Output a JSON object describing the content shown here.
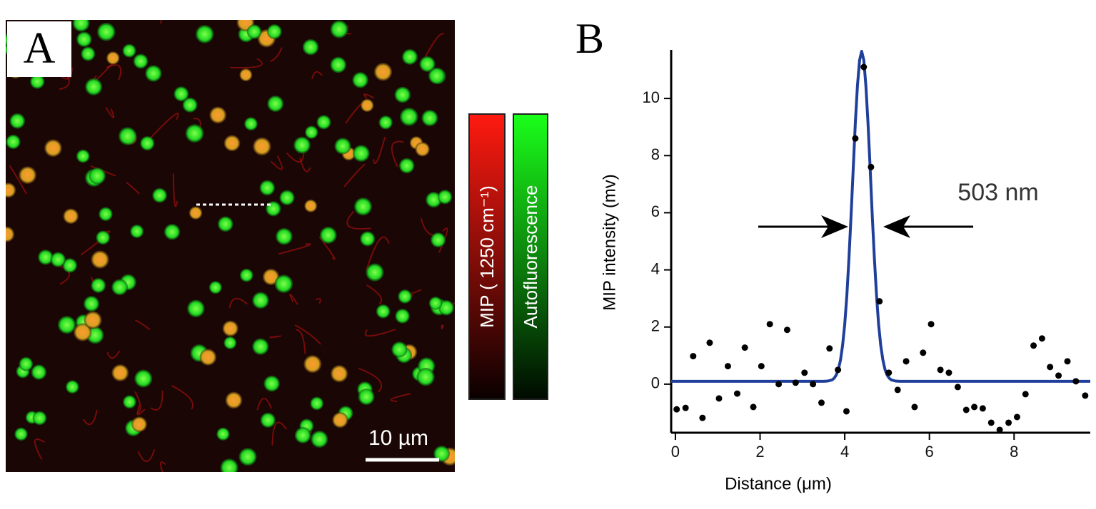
{
  "panel_a": {
    "label": "A",
    "scale_bar": "10 µm",
    "colorbar_red": "MIP ( 1250 cm⁻¹)",
    "colorbar_green": "Autofluorescence"
  },
  "panel_b": {
    "label": "B"
  },
  "chart_data": {
    "type": "scatter",
    "xlabel": "Distance (μm)",
    "ylabel": "MIP intensity (mv)",
    "annotation": "503 nm",
    "xlim": [
      -0.1,
      9.8
    ],
    "ylim": [
      -1.7,
      11.7
    ],
    "xticks": [
      0,
      2,
      4,
      6,
      8
    ],
    "yticks": [
      0,
      2,
      4,
      6,
      8,
      10
    ],
    "points": {
      "color": "#000000",
      "x": [
        0.03,
        0.24,
        0.42,
        0.64,
        0.81,
        1.03,
        1.24,
        1.46,
        1.64,
        1.84,
        2.03,
        2.23,
        2.44,
        2.64,
        2.84,
        3.05,
        3.25,
        3.45,
        3.64,
        3.84,
        4.04,
        4.25,
        4.45,
        4.62,
        4.82,
        5.04,
        5.25,
        5.45,
        5.65,
        5.85,
        6.04,
        6.26,
        6.46,
        6.67,
        6.87,
        7.06,
        7.26,
        7.46,
        7.66,
        7.87,
        8.07,
        8.27,
        8.46,
        8.66,
        8.85,
        9.05,
        9.26,
        9.46,
        9.68
      ],
      "values": [
        -0.88,
        -0.83,
        0.98,
        -1.18,
        1.45,
        -0.5,
        0.63,
        -0.33,
        1.28,
        -0.8,
        0.63,
        2.1,
        0,
        1.9,
        0.05,
        0.4,
        0,
        -0.65,
        1.25,
        0.5,
        -0.95,
        8.6,
        11.1,
        7.6,
        2.9,
        0.4,
        -0.2,
        0.8,
        -0.8,
        1.1,
        2.1,
        0.5,
        0.4,
        -0.1,
        -0.9,
        -0.8,
        -0.85,
        -1.35,
        -1.6,
        -1.35,
        -1.15,
        -0.35,
        1.35,
        1.6,
        0.6,
        0.3,
        0.8,
        0.1,
        -0.4
      ]
    },
    "fit": {
      "color": "#1f3f9a",
      "x": [
        -0.1,
        3.5,
        3.6,
        3.7,
        3.75,
        3.8,
        3.85,
        3.9,
        3.95,
        4.0,
        4.05,
        4.1,
        4.15,
        4.2,
        4.25,
        4.3,
        4.35,
        4.4,
        4.45,
        4.5,
        4.55,
        4.6,
        4.65,
        4.7,
        4.75,
        4.8,
        4.85,
        4.9,
        4.95,
        5.0,
        5.05,
        5.1,
        5.2,
        5.3,
        9.8
      ],
      "values": [
        0.1,
        0.1,
        0.11,
        0.15,
        0.21,
        0.32,
        0.52,
        0.85,
        1.36,
        2.1,
        3.12,
        4.41,
        5.92,
        7.55,
        9.13,
        10.45,
        11.34,
        11.65,
        11.34,
        10.45,
        9.13,
        7.55,
        5.92,
        4.41,
        3.12,
        2.1,
        1.36,
        0.85,
        0.52,
        0.32,
        0.21,
        0.15,
        0.11,
        0.1,
        0.1
      ]
    }
  }
}
